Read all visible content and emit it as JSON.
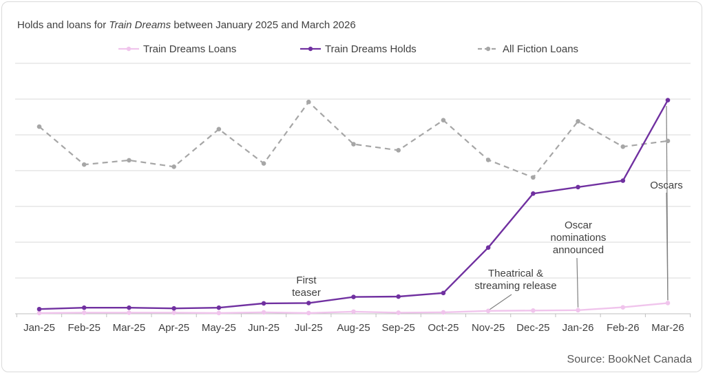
{
  "chart_data": {
    "type": "line",
    "title_prefix": "Holds and loans for ",
    "title_italic": "Train Dreams",
    "title_suffix": " between January 2025 and March 2026",
    "categories": [
      "Jan-25",
      "Feb-25",
      "Mar-25",
      "Apr-25",
      "May-25",
      "Jun-25",
      "Jul-25",
      "Aug-25",
      "Sep-25",
      "Oct-25",
      "Nov-25",
      "Dec-25",
      "Jan-26",
      "Feb-26",
      "Mar-26"
    ],
    "ylim": [
      0,
      7
    ],
    "grid": true,
    "legend_position": "top",
    "series": [
      {
        "name": "Train Dreams Loans",
        "color": "#f0c4ec",
        "dashed": false,
        "values": [
          0.02,
          0.03,
          0.03,
          0.03,
          0.02,
          0.04,
          0.02,
          0.06,
          0.03,
          0.04,
          0.08,
          0.09,
          0.1,
          0.18,
          0.3
        ]
      },
      {
        "name": "Train Dreams Holds",
        "color": "#7030a0",
        "dashed": false,
        "values": [
          0.13,
          0.17,
          0.17,
          0.15,
          0.17,
          0.29,
          0.3,
          0.47,
          0.48,
          0.58,
          1.85,
          3.36,
          3.54,
          3.72,
          5.97
        ]
      },
      {
        "name": "All Fiction Loans",
        "color": "#a6a6a6",
        "dashed": true,
        "values": [
          5.23,
          4.17,
          4.29,
          4.11,
          5.16,
          4.2,
          5.92,
          4.74,
          4.57,
          5.41,
          4.3,
          3.81,
          5.38,
          4.67,
          4.83
        ]
      }
    ],
    "annotations": [
      {
        "lines": [
          "First",
          "teaser"
        ],
        "category_index": 6,
        "series": "Train Dreams Holds"
      },
      {
        "lines": [
          "Theatrical &",
          "streaming release"
        ],
        "category_index": 10,
        "series": "Train Dreams Loans"
      },
      {
        "lines": [
          "Oscar",
          "nominations",
          "announced"
        ],
        "category_index": 12,
        "series": "Train Dreams Loans"
      },
      {
        "lines": [
          "Oscars"
        ],
        "category_index": 14,
        "series": "Train Dreams Loans"
      }
    ],
    "source": "Source: BookNet Canada"
  }
}
